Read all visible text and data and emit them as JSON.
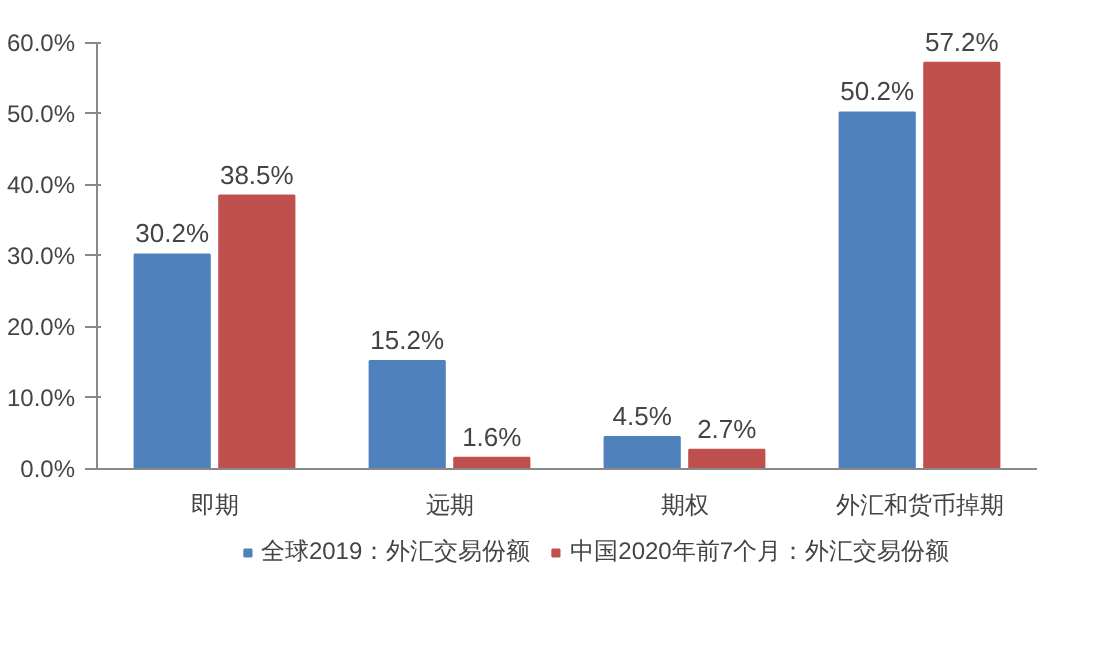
{
  "chart_data": {
    "type": "bar",
    "categories": [
      "即期",
      "远期",
      "期权",
      "外汇和货币掉期"
    ],
    "series": [
      {
        "name": "全球2019：外汇交易份额",
        "color": "#4f81bd",
        "values": [
          30.2,
          15.2,
          4.5,
          50.2
        ],
        "value_labels": [
          "30.2%",
          "15.2%",
          "4.5%",
          "50.2%"
        ]
      },
      {
        "name": "中国2020年前7个月：外汇交易份额",
        "color": "#c0504d",
        "values": [
          38.5,
          1.6,
          2.7,
          57.2
        ],
        "value_labels": [
          "38.5%",
          "1.6%",
          "2.7%",
          "57.2%"
        ]
      }
    ],
    "ylim": [
      0,
      60
    ],
    "yticks": [
      {
        "value": 0,
        "label": "0.0%"
      },
      {
        "value": 10,
        "label": "10.0%"
      },
      {
        "value": 20,
        "label": "20.0%"
      },
      {
        "value": 30,
        "label": "30.0%"
      },
      {
        "value": 40,
        "label": "40.0%"
      },
      {
        "value": 50,
        "label": "50.0%"
      },
      {
        "value": 60,
        "label": "60.0%"
      }
    ],
    "grid": false,
    "legend": "bottom"
  }
}
